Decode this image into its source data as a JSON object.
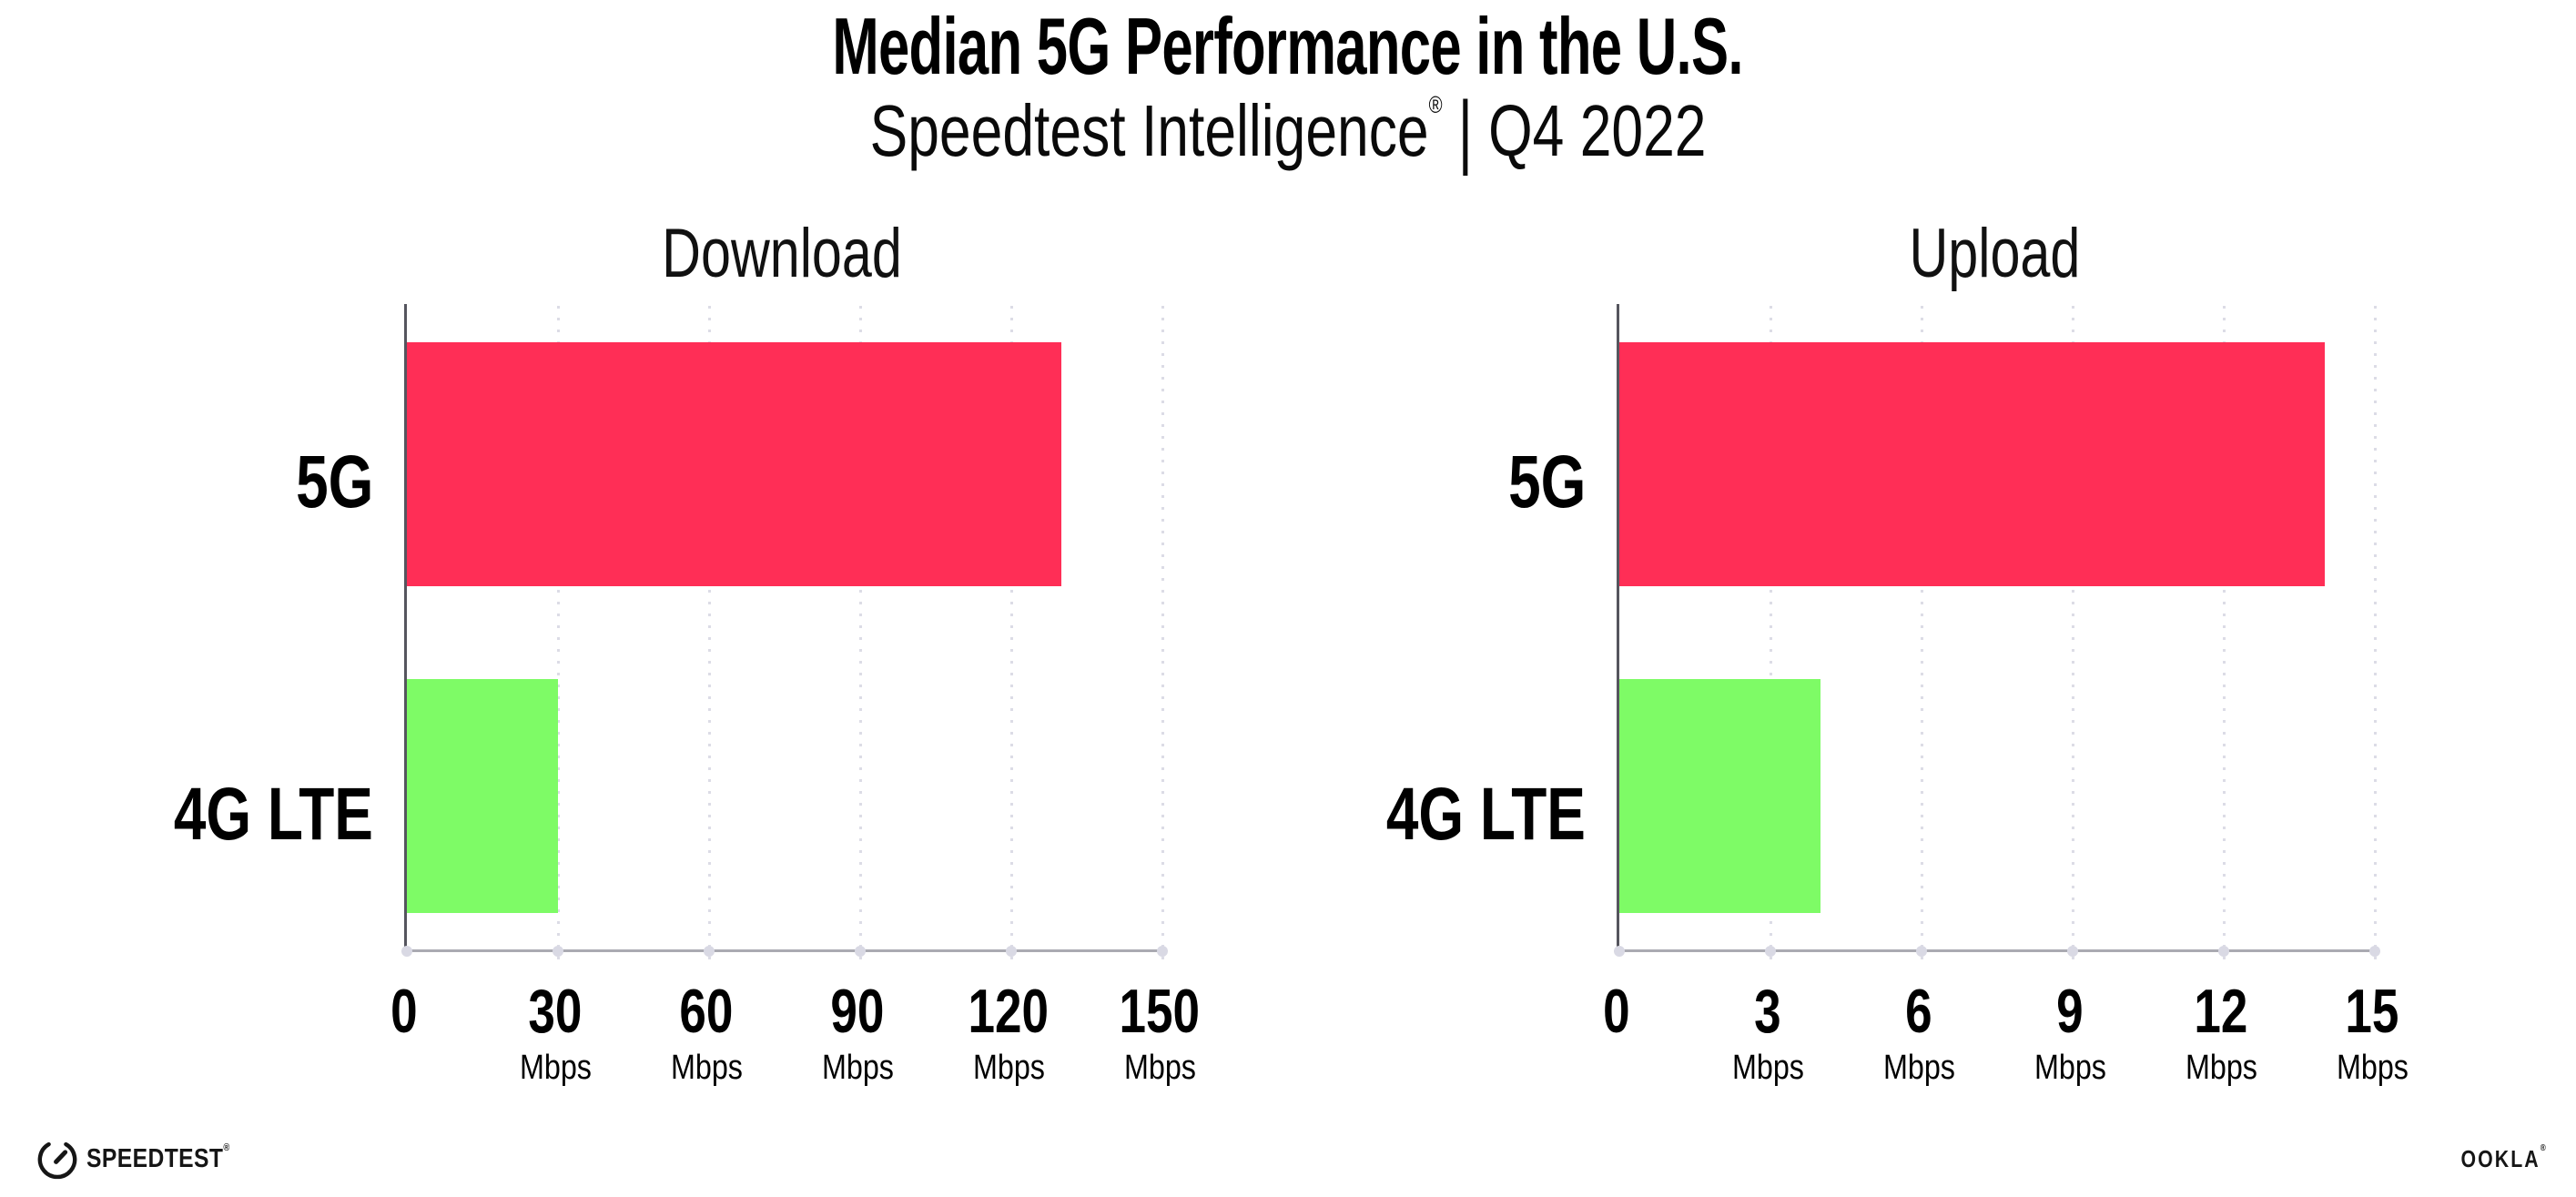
{
  "header": {
    "title": "Median 5G Performance in the U.S.",
    "subtitle": {
      "brand": "Speedtest Intelligence",
      "registered_mark": "®",
      "divider": "|",
      "period": "Q4 2022"
    }
  },
  "chart_data": [
    {
      "type": "bar",
      "orientation": "horizontal",
      "title": "Download",
      "categories": [
        "5G",
        "4G LTE"
      ],
      "values": [
        130,
        30
      ],
      "unit": "Mbps",
      "xlim": [
        0,
        150
      ],
      "xticks": [
        0,
        30,
        60,
        90,
        120,
        150
      ],
      "tick_unit": "Mbps",
      "bar_colors": [
        "#ff2e56",
        "#7efb66"
      ],
      "grid": "dotted vertical gridlines at each tick",
      "legend": "none"
    },
    {
      "type": "bar",
      "orientation": "horizontal",
      "title": "Upload",
      "categories": [
        "5G",
        "4G LTE"
      ],
      "values": [
        14,
        4
      ],
      "unit": "Mbps",
      "xlim": [
        0,
        15
      ],
      "xticks": [
        0,
        3,
        6,
        9,
        12,
        15
      ],
      "tick_unit": "Mbps",
      "bar_colors": [
        "#ff2e56",
        "#7efb66"
      ],
      "grid": "dotted vertical gridlines at each tick",
      "legend": "none"
    }
  ],
  "footer": {
    "speedtest": {
      "label": "SPEEDTEST",
      "mark": "®",
      "icon": "speedtest-gauge-icon"
    },
    "ookla": {
      "label": "OOKLA",
      "mark": "®"
    }
  },
  "colors": {
    "bar_5g": "#ff2e56",
    "bar_4g_lte": "#7efb66",
    "gridline": "#dcdce6",
    "x_axis": "#aaaab2",
    "y_axis": "#55555e",
    "text": "#000000",
    "background": "#ffffff"
  }
}
